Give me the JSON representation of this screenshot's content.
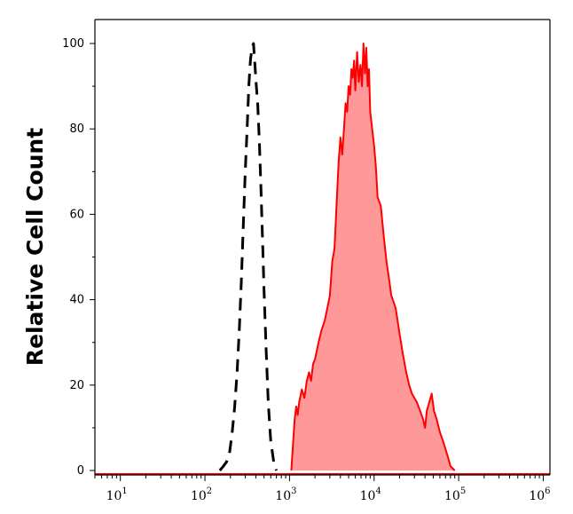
{
  "chart_data": {
    "type": "area",
    "xscale": "log",
    "xlim": [
      5,
      1200000
    ],
    "ylim": [
      0,
      100
    ],
    "ylabel": "Relative Cell Count",
    "xlabel": "",
    "grid": false,
    "legend": "none",
    "x_ticks": [
      {
        "value": 10,
        "base": "10",
        "exp": "1"
      },
      {
        "value": 100,
        "base": "10",
        "exp": "2"
      },
      {
        "value": 1000,
        "base": "10",
        "exp": "3"
      },
      {
        "value": 10000,
        "base": "10",
        "exp": "4"
      },
      {
        "value": 100000,
        "base": "10",
        "exp": "5"
      },
      {
        "value": 1000000,
        "base": "10",
        "exp": "6"
      }
    ],
    "y_ticks": [
      {
        "value": 0,
        "label": "0"
      },
      {
        "value": 20,
        "label": "20"
      },
      {
        "value": 40,
        "label": "40"
      },
      {
        "value": 60,
        "label": "60"
      },
      {
        "value": 80,
        "label": "80"
      },
      {
        "value": 100,
        "label": "100"
      }
    ],
    "series": [
      {
        "style": "dashed",
        "color": "#000000",
        "fill": "none",
        "points": [
          [
            150,
            0
          ],
          [
            165,
            1
          ],
          [
            180,
            2
          ],
          [
            195,
            4
          ],
          [
            210,
            9
          ],
          [
            225,
            15
          ],
          [
            240,
            23
          ],
          [
            255,
            33
          ],
          [
            270,
            45
          ],
          [
            285,
            58
          ],
          [
            300,
            70
          ],
          [
            315,
            80
          ],
          [
            330,
            90
          ],
          [
            345,
            96
          ],
          [
            360,
            99
          ],
          [
            375,
            100
          ],
          [
            390,
            95
          ],
          [
            405,
            90
          ],
          [
            420,
            86
          ],
          [
            440,
            77
          ],
          [
            460,
            66
          ],
          [
            480,
            54
          ],
          [
            500,
            42
          ],
          [
            530,
            28
          ],
          [
            560,
            16
          ],
          [
            600,
            7
          ],
          [
            650,
            2
          ],
          [
            700,
            0
          ]
        ]
      },
      {
        "style": "solid",
        "color": "#ff0000",
        "fill": "#ff9999",
        "points": [
          [
            1050,
            0
          ],
          [
            1100,
            6
          ],
          [
            1150,
            12
          ],
          [
            1200,
            15
          ],
          [
            1250,
            13
          ],
          [
            1300,
            16
          ],
          [
            1400,
            19
          ],
          [
            1500,
            17
          ],
          [
            1600,
            21
          ],
          [
            1700,
            23
          ],
          [
            1800,
            21
          ],
          [
            1900,
            25
          ],
          [
            2000,
            26
          ],
          [
            2200,
            30
          ],
          [
            2400,
            33
          ],
          [
            2600,
            35
          ],
          [
            2800,
            38
          ],
          [
            3000,
            41
          ],
          [
            3200,
            49
          ],
          [
            3400,
            52
          ],
          [
            3600,
            62
          ],
          [
            3800,
            72
          ],
          [
            4000,
            78
          ],
          [
            4200,
            74
          ],
          [
            4400,
            80
          ],
          [
            4600,
            86
          ],
          [
            4800,
            84
          ],
          [
            5000,
            90
          ],
          [
            5200,
            88
          ],
          [
            5400,
            94
          ],
          [
            5600,
            92
          ],
          [
            5800,
            96
          ],
          [
            6000,
            89
          ],
          [
            6300,
            98
          ],
          [
            6600,
            91
          ],
          [
            6900,
            95
          ],
          [
            7200,
            90
          ],
          [
            7500,
            100
          ],
          [
            7800,
            93
          ],
          [
            8100,
            99
          ],
          [
            8400,
            90
          ],
          [
            8700,
            94
          ],
          [
            9000,
            84
          ],
          [
            9500,
            80
          ],
          [
            10000,
            76
          ],
          [
            10500,
            71
          ],
          [
            11000,
            64
          ],
          [
            12000,
            62
          ],
          [
            13000,
            55
          ],
          [
            14000,
            49
          ],
          [
            15000,
            45
          ],
          [
            16000,
            41
          ],
          [
            18000,
            38
          ],
          [
            20000,
            32
          ],
          [
            22000,
            27
          ],
          [
            24000,
            23
          ],
          [
            26000,
            20
          ],
          [
            28000,
            18
          ],
          [
            30000,
            17
          ],
          [
            32000,
            16
          ],
          [
            35000,
            14
          ],
          [
            38000,
            12
          ],
          [
            40000,
            10
          ],
          [
            42000,
            14
          ],
          [
            45000,
            16
          ],
          [
            48000,
            18
          ],
          [
            51000,
            14
          ],
          [
            55000,
            12
          ],
          [
            60000,
            9
          ],
          [
            65000,
            7
          ],
          [
            70000,
            5
          ],
          [
            75000,
            3
          ],
          [
            80000,
            1
          ],
          [
            90000,
            0
          ]
        ]
      }
    ]
  }
}
